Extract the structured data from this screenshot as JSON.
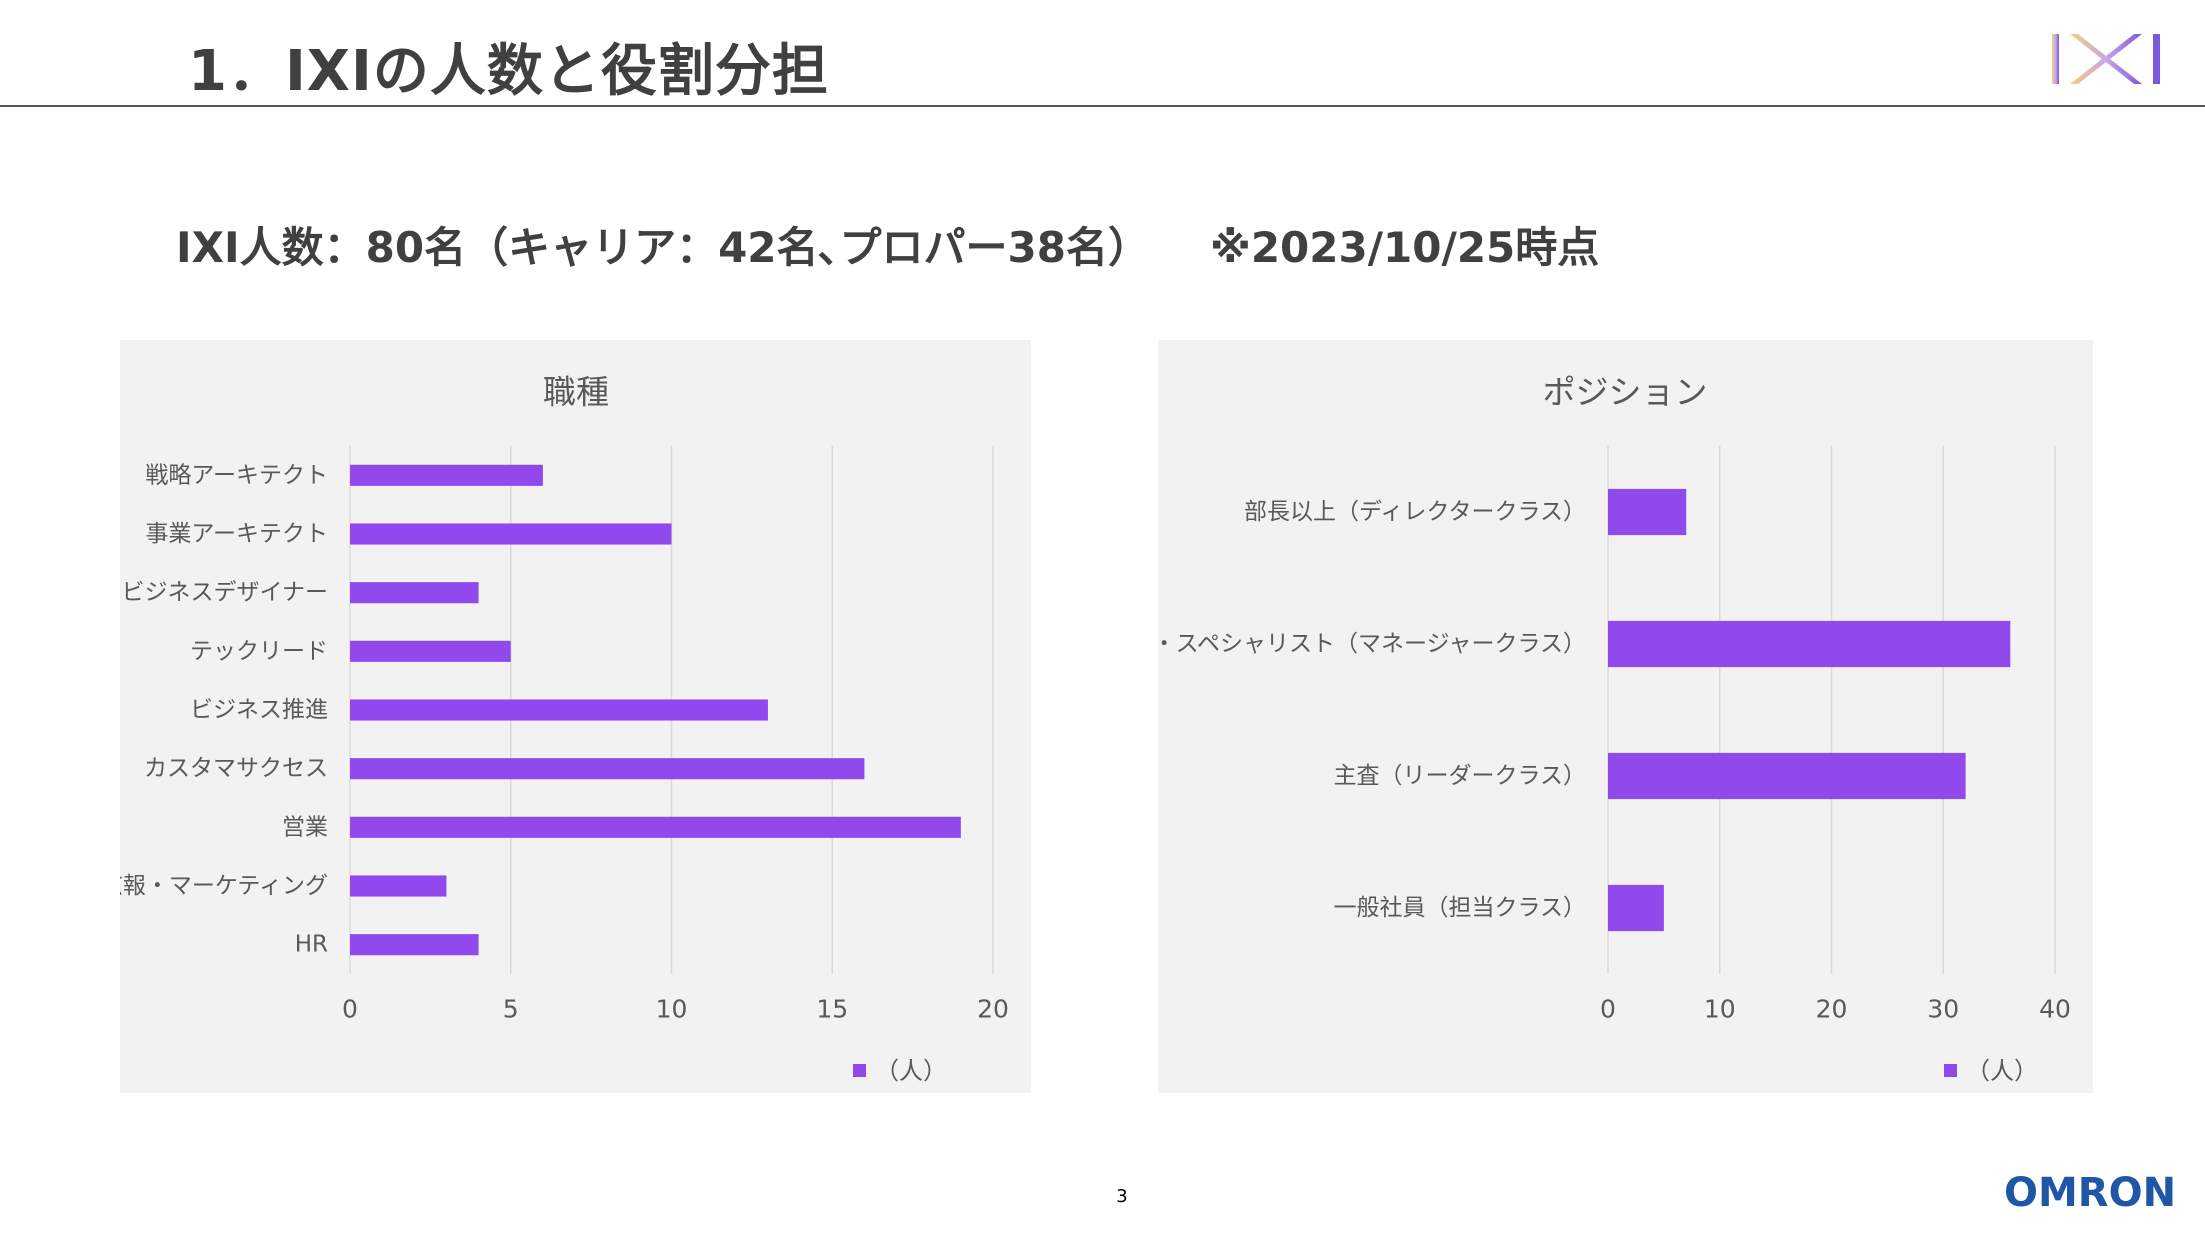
{
  "slide": {
    "title": "1．IXIの人数と役割分担",
    "headline": "IXI人数：80名（キャリア：42名､プロパー38名）",
    "headline_note": "※2023/10/25時点",
    "page_number": "3",
    "logo_text": "IXI",
    "footer_logo": "OMRON"
  },
  "colors": {
    "bar": "#9149ee",
    "panel_bg": "#f2f2f2",
    "grid": "#d9d9d9",
    "text": "#595959"
  },
  "chart_data": [
    {
      "type": "bar",
      "orientation": "horizontal",
      "title": "職種",
      "categories": [
        "戦略アーキテクト",
        "事業アーキテクト",
        "ビジネスデザイナー",
        "テックリード",
        "ビジネス推進",
        "カスタマサクセス",
        "営業",
        "広報・マーケティング",
        "HR"
      ],
      "series": [
        {
          "name": "（人）",
          "values": [
            6,
            10,
            4,
            5,
            13,
            16,
            19,
            3,
            4
          ]
        }
      ],
      "xlim": [
        0,
        20
      ],
      "xticks": [
        0,
        5,
        10,
        15,
        20
      ],
      "grid": true,
      "legend": "bottom-right"
    },
    {
      "type": "bar",
      "orientation": "horizontal",
      "title": "ポジション",
      "categories": [
        "部長以上（ディレクタークラス）",
        "課長・スペシャリスト（マネージャークラス）",
        "主査（リーダークラス）",
        "一般社員（担当クラス）"
      ],
      "series": [
        {
          "name": "（人）",
          "values": [
            7,
            36,
            32,
            5
          ]
        }
      ],
      "xlim": [
        0,
        40
      ],
      "xticks": [
        0,
        10,
        20,
        30,
        40
      ],
      "grid": true,
      "legend": "bottom-right"
    }
  ]
}
